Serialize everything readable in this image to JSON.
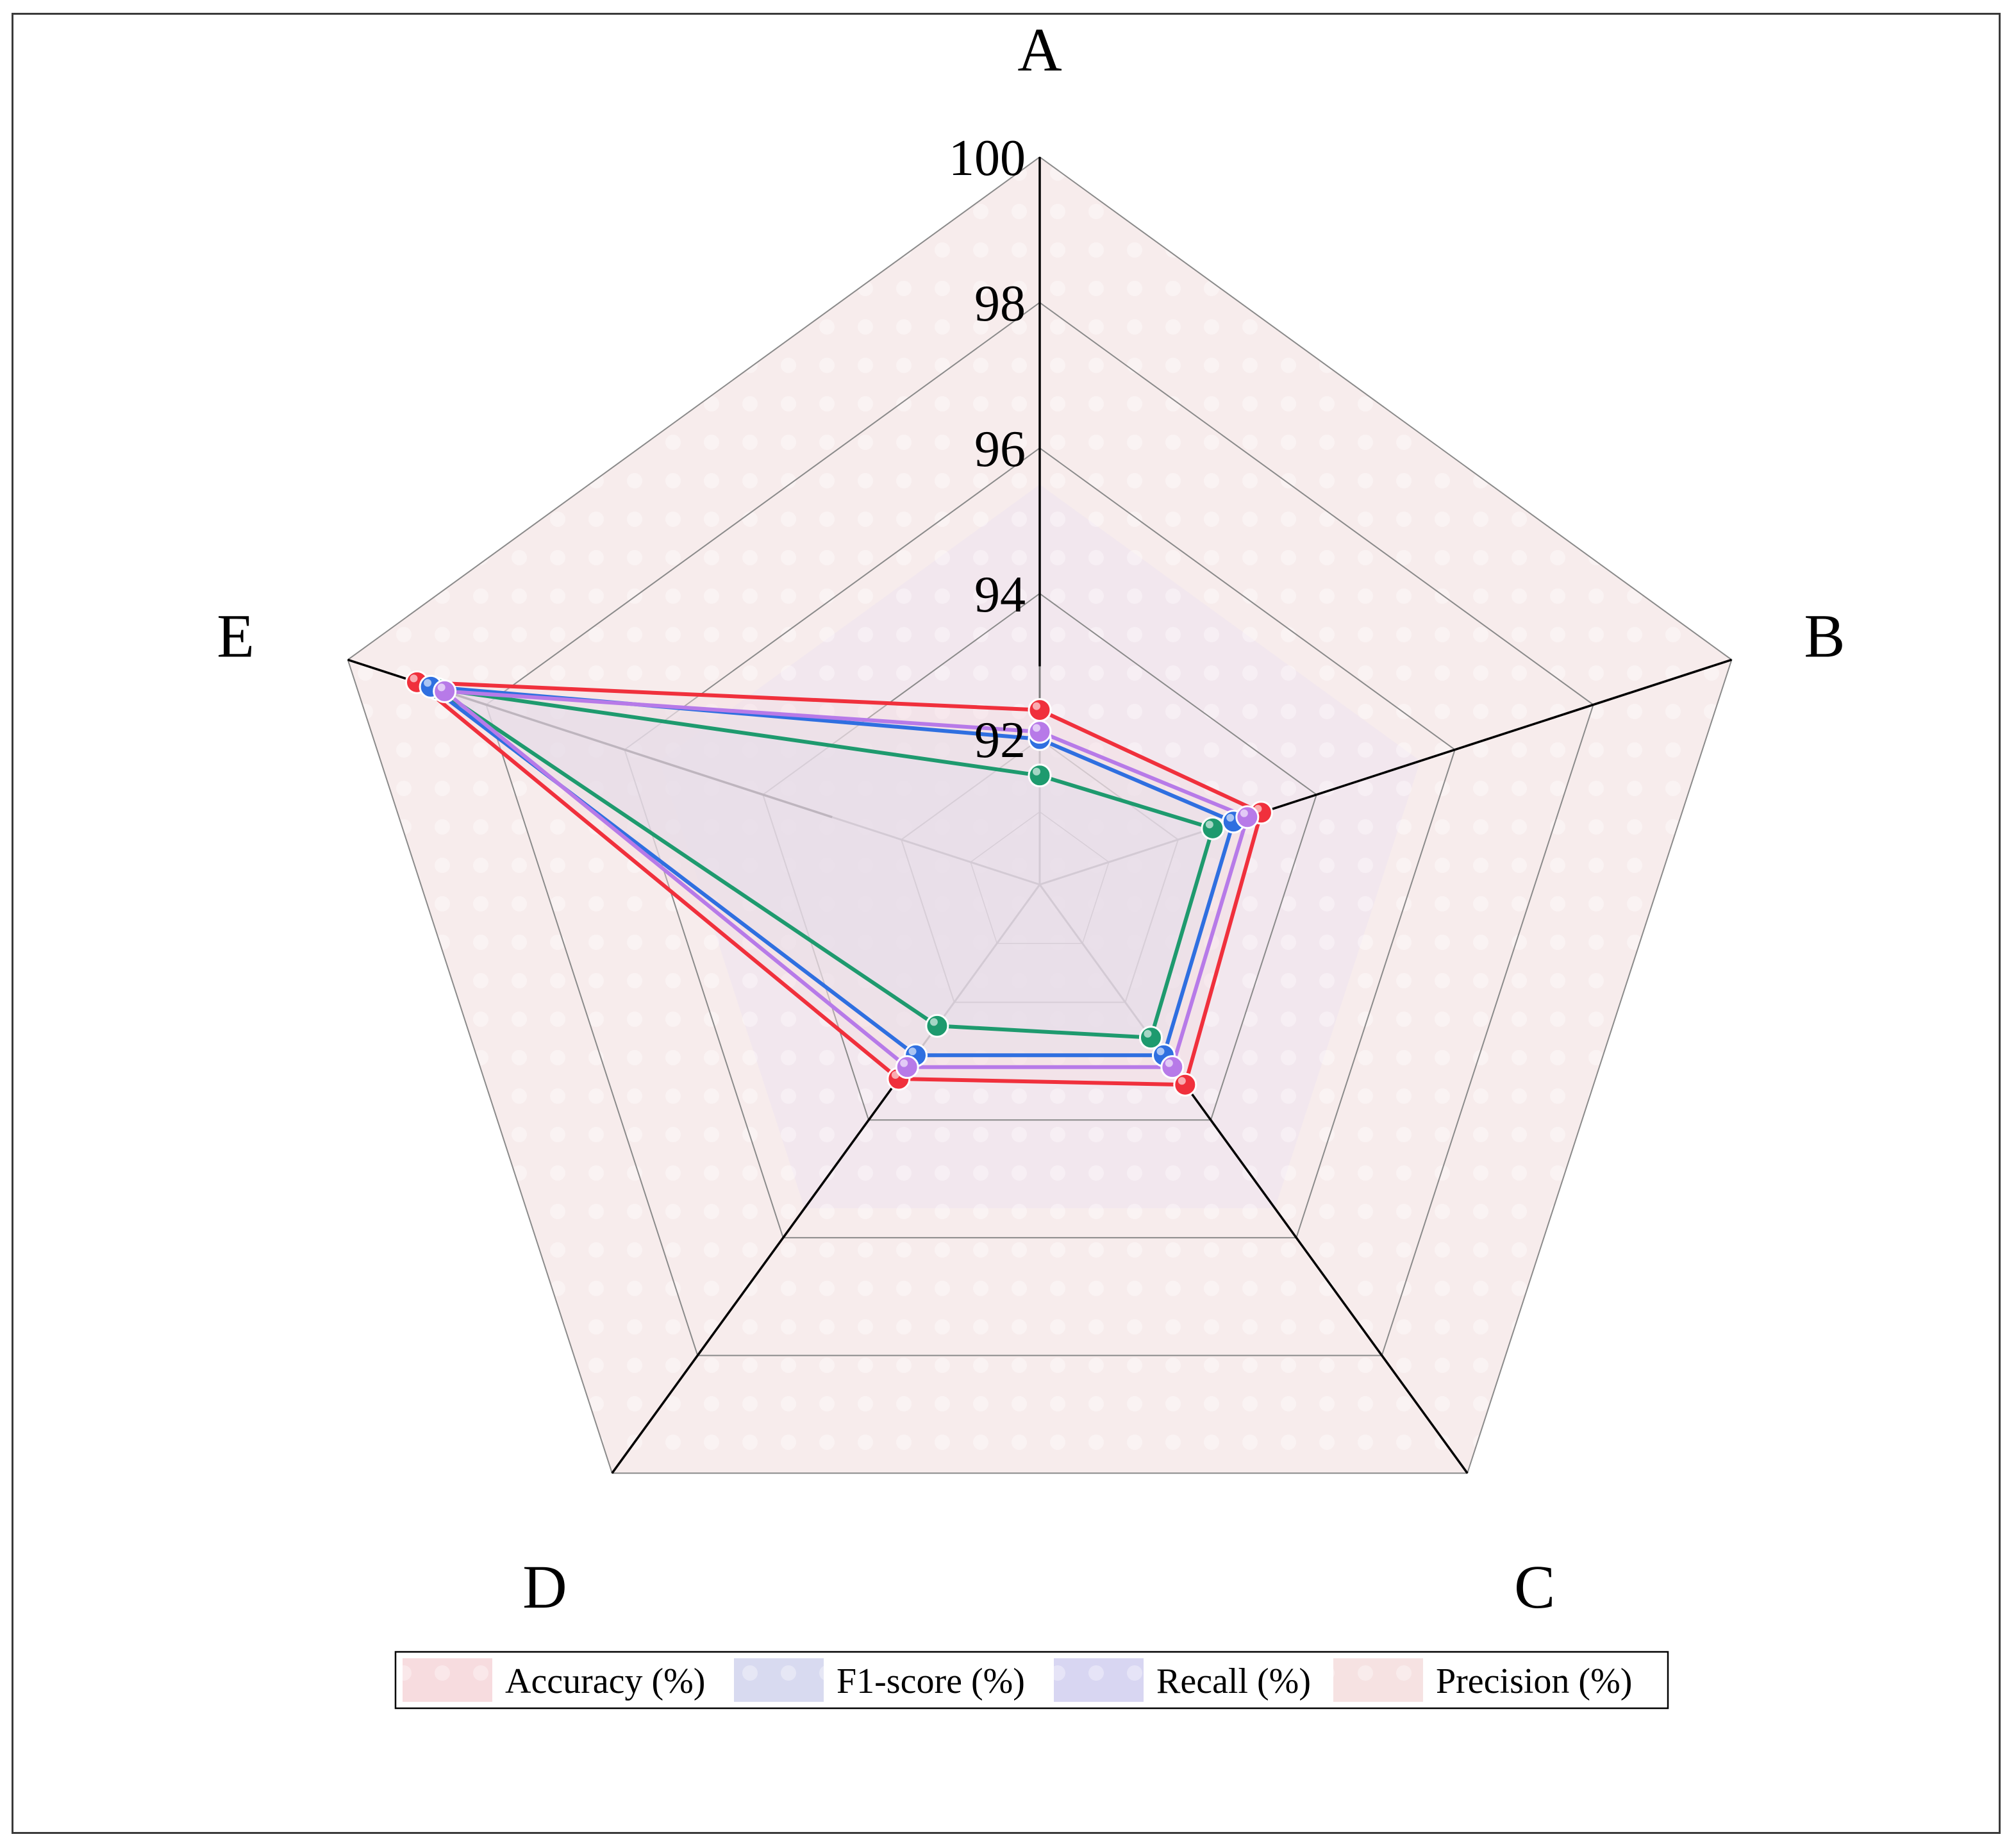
{
  "chart_data": {
    "type": "radar",
    "axes": [
      "A",
      "B",
      "C",
      "D",
      "E"
    ],
    "rlim": [
      90,
      100
    ],
    "ticks": [
      92,
      94,
      96,
      98,
      100
    ],
    "tick_labels": [
      "92",
      "94",
      "96",
      "98",
      "100"
    ],
    "grid": true,
    "legend_position": "bottom",
    "series": [
      {
        "name": "Accuracy (%)",
        "values": [
          92.4,
          93.2,
          93.4,
          93.3,
          99.0
        ],
        "color": "#f0303c",
        "fill": "#f7dcdf"
      },
      {
        "name": "F1-score (%)",
        "values": [
          92.0,
          92.8,
          92.9,
          92.9,
          98.8
        ],
        "color": "#2f6fe0",
        "fill": "#d8daf0"
      },
      {
        "name": "Recall (%)",
        "values": [
          91.5,
          92.5,
          92.6,
          92.4,
          98.7
        ],
        "color": "#1e9a6e",
        "fill": "#d8d6f2"
      },
      {
        "name": "Precision (%)",
        "values": [
          92.1,
          93.0,
          93.1,
          93.1,
          98.6
        ],
        "color": "#b77ae8",
        "fill": "#f6e2e2"
      }
    ]
  }
}
